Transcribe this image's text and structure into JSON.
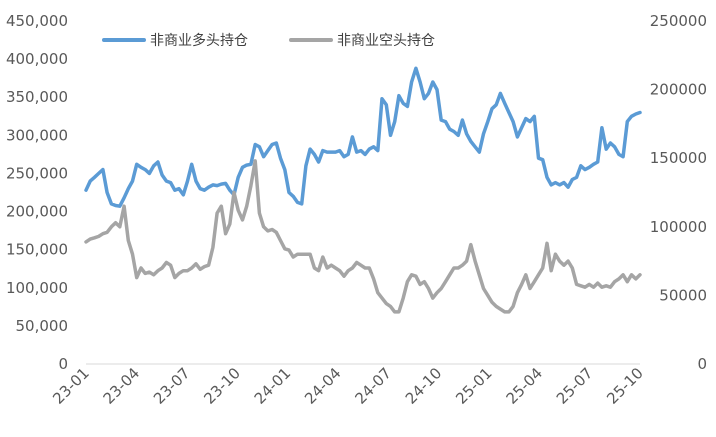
{
  "chart_data": {
    "type": "line",
    "title": "",
    "xlabel": "",
    "ylabel": "",
    "grid": false,
    "legend_position": "top-left",
    "x_tick_labels": [
      "23-01",
      "23-04",
      "23-07",
      "23-10",
      "24-01",
      "24-04",
      "24-07",
      "24-10",
      "25-01",
      "25-04",
      "25-07",
      "25-10"
    ],
    "y_left": {
      "min": 0,
      "max": 450000,
      "tick_labels": [
        "0",
        "50,000",
        "100,000",
        "150,000",
        "200,000",
        "250,000",
        "300,000",
        "350,000",
        "400,000",
        "450,000"
      ]
    },
    "y_right": {
      "min": 0,
      "max": 250000,
      "tick_labels": [
        "0",
        "50000",
        "100000",
        "150000",
        "200000",
        "250000"
      ]
    },
    "series": [
      {
        "name": "非商业多头持仓",
        "axis": "left",
        "color": "#5B9BD5",
        "values": [
          228000,
          240000,
          245000,
          250000,
          255000,
          225000,
          210000,
          208000,
          207000,
          218000,
          230000,
          240000,
          262000,
          258000,
          255000,
          250000,
          260000,
          265000,
          248000,
          240000,
          238000,
          228000,
          230000,
          222000,
          240000,
          262000,
          240000,
          230000,
          228000,
          232000,
          235000,
          234000,
          236000,
          237000,
          228000,
          222000,
          245000,
          258000,
          261000,
          262000,
          288000,
          285000,
          272000,
          280000,
          288000,
          290000,
          270000,
          255000,
          225000,
          220000,
          212000,
          210000,
          260000,
          282000,
          275000,
          265000,
          280000,
          278000,
          278000,
          278000,
          280000,
          272000,
          275000,
          298000,
          278000,
          280000,
          275000,
          282000,
          285000,
          280000,
          348000,
          340000,
          300000,
          318000,
          352000,
          342000,
          338000,
          370000,
          388000,
          370000,
          348000,
          355000,
          370000,
          360000,
          320000,
          318000,
          308000,
          305000,
          300000,
          320000,
          302000,
          292000,
          285000,
          278000,
          302000,
          318000,
          335000,
          340000,
          355000,
          342000,
          330000,
          318000,
          298000,
          310000,
          322000,
          318000,
          325000,
          270000,
          268000,
          245000,
          235000,
          238000,
          235000,
          238000,
          232000,
          242000,
          245000,
          260000,
          255000,
          258000,
          262000,
          265000,
          310000,
          282000,
          290000,
          285000,
          275000,
          272000,
          318000,
          325000,
          328000,
          330000
        ]
      },
      {
        "name": "非商业空头持仓",
        "axis": "right",
        "color": "#A5A5A5",
        "values": [
          89000,
          91000,
          92000,
          93000,
          95000,
          96000,
          100000,
          103000,
          100000,
          115000,
          90000,
          80000,
          63000,
          70000,
          66000,
          67000,
          65000,
          68000,
          70000,
          74000,
          72000,
          63000,
          66000,
          68000,
          68000,
          70000,
          73000,
          69000,
          71000,
          72000,
          85000,
          110000,
          115000,
          95000,
          102000,
          125000,
          112000,
          105000,
          115000,
          130000,
          148000,
          110000,
          100000,
          97000,
          98000,
          96000,
          90000,
          84000,
          83000,
          78000,
          80000,
          80000,
          80000,
          80000,
          70000,
          68000,
          78000,
          70000,
          72000,
          70000,
          68000,
          64000,
          68000,
          70000,
          74000,
          72000,
          70000,
          70000,
          62000,
          52000,
          48000,
          44000,
          42000,
          38000,
          38000,
          48000,
          60000,
          65000,
          64000,
          58000,
          60000,
          55000,
          48000,
          52000,
          55000,
          60000,
          65000,
          70000,
          70000,
          72000,
          75000,
          87000,
          75000,
          65000,
          55000,
          50000,
          45000,
          42000,
          40000,
          38000,
          38000,
          42000,
          52000,
          58000,
          65000,
          55000,
          60000,
          65000,
          70000,
          88000,
          68000,
          80000,
          75000,
          72000,
          75000,
          70000,
          58000,
          57000,
          56000,
          58000,
          56000,
          59000,
          56000,
          57000,
          56000,
          60000,
          62000,
          65000,
          60000,
          65000,
          62000,
          65000
        ]
      }
    ]
  }
}
